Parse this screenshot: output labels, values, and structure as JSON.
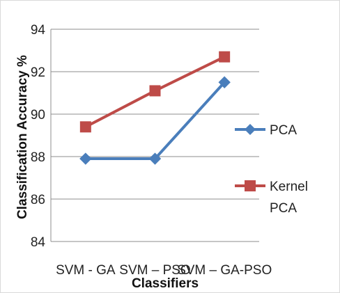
{
  "chart_data": {
    "type": "line",
    "categories": [
      "SVM - GA",
      "SVM – PSO",
      "SVM – GA-PSO"
    ],
    "series": [
      {
        "name": "PCA",
        "values": [
          87.9,
          87.9,
          91.5
        ],
        "color": "#4a7ebb",
        "marker": "diamond"
      },
      {
        "name": "Kernel PCA",
        "values": [
          89.4,
          91.1,
          92.7
        ],
        "color": "#be4b48",
        "marker": "square"
      }
    ],
    "title": "",
    "xlabel": "Classifiers",
    "ylabel": "Classification Accuracy %",
    "ylim": [
      84,
      94
    ],
    "yticks": [
      84,
      86,
      88,
      90,
      92,
      94
    ],
    "grid": true,
    "legend_position": "right"
  }
}
